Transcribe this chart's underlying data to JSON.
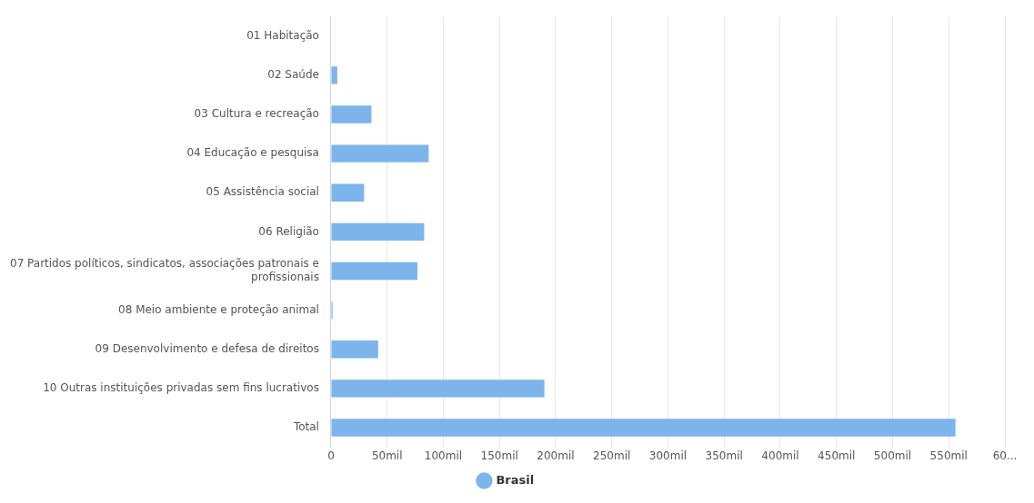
{
  "chart_data": {
    "type": "bar",
    "orientation": "horizontal",
    "categories": [
      "01 Habitação",
      "02 Saúde",
      "03 Cultura e recreação",
      "04 Educação e pesquisa",
      "05 Assistência social",
      "06 Religião",
      "07 Partidos políticos, sindicatos, associações patronais e profissionais",
      "08 Meio ambiente e proteção animal",
      "09 Desenvolvimento e defesa de direitos",
      "10 Outras instituições privadas sem fins lucrativos",
      "Total"
    ],
    "series": [
      {
        "name": "Brasil",
        "color": "#7cb5ec",
        "values": [
          0,
          5.6,
          36,
          87,
          29.5,
          83,
          77,
          1.4,
          42,
          190,
          556
        ]
      }
    ],
    "xlim": [
      0,
      600
    ],
    "xticks": [
      0,
      {
        "value": 50,
        "label": "50mil"
      },
      {
        "value": 100,
        "label": "100mil"
      },
      {
        "value": 150,
        "label": "150mil"
      },
      {
        "value": 200,
        "label": "200mil"
      },
      {
        "value": 250,
        "label": "250mil"
      },
      {
        "value": 300,
        "label": "300mil"
      },
      {
        "value": 350,
        "label": "350mil"
      },
      {
        "value": 400,
        "label": "400mil"
      },
      {
        "value": 450,
        "label": "450mil"
      },
      {
        "value": 500,
        "label": "500mil"
      },
      {
        "value": 550,
        "label": "550mil"
      },
      {
        "value": 600,
        "label": "60..."
      }
    ],
    "grid": "x",
    "legend": "bottom"
  }
}
